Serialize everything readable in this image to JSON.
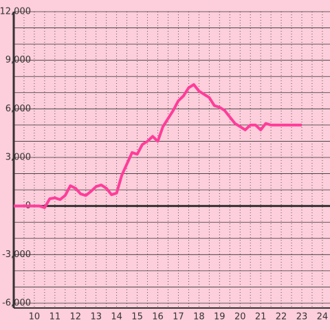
{
  "chart_data": {
    "type": "line",
    "x": [
      9,
      10,
      10.25,
      10.5,
      10.75,
      11,
      11.25,
      11.5,
      11.75,
      12,
      12.25,
      12.5,
      12.75,
      13,
      13.25,
      13.5,
      13.75,
      14,
      14.25,
      14.5,
      14.75,
      15,
      15.25,
      15.5,
      15.75,
      16,
      16.25,
      16.5,
      16.75,
      17,
      17.25,
      17.5,
      17.75,
      18,
      18.25,
      18.5,
      18.75,
      19,
      19.25,
      19.5,
      19.75,
      20,
      20.25,
      20.5,
      20.75,
      21,
      21.25,
      21.5,
      21.75,
      22,
      22.25,
      22.5,
      22.75,
      23
    ],
    "values": [
      0,
      0,
      0,
      -100,
      450,
      500,
      400,
      650,
      1250,
      1100,
      750,
      650,
      900,
      1200,
      1300,
      1100,
      700,
      800,
      1900,
      2600,
      3300,
      3200,
      3800,
      4000,
      4300,
      4000,
      4900,
      5400,
      5900,
      6500,
      6800,
      7300,
      7500,
      7100,
      6900,
      6700,
      6200,
      6100,
      5900,
      5500,
      5100,
      4900,
      4700,
      5000,
      5000,
      4700,
      5100,
      5000,
      5000,
      5000,
      5000,
      5000,
      5000,
      5000
    ],
    "color": "#ff3d9a",
    "xlim": [
      9,
      24.37
    ],
    "xticks": [
      10,
      11,
      12,
      13,
      14,
      15,
      16,
      17,
      18,
      19,
      20,
      21,
      22,
      23,
      24
    ],
    "ylim": [
      -6000,
      12000
    ],
    "yticks": [
      {
        "value": -6000,
        "label": "-6,000"
      },
      {
        "value": -3000,
        "label": "-3,000"
      },
      0,
      {
        "value": 3000,
        "label": "3,000"
      },
      {
        "value": 6000,
        "label": "6,000"
      },
      {
        "value": 9000,
        "label": "9,000"
      },
      {
        "value": 12000,
        "label": "12,000"
      }
    ],
    "grid": true
  }
}
